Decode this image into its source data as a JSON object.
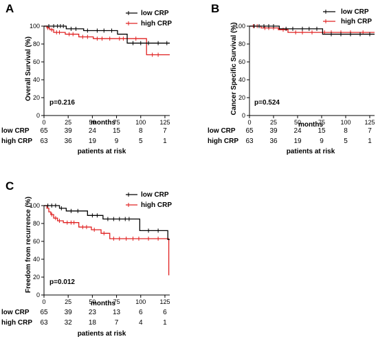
{
  "colors": {
    "low": "#000000",
    "high": "#e02020"
  },
  "chart_data": [
    {
      "panel": "A",
      "type": "line",
      "ylabel": "Overall  Survival (%)",
      "xlabel": "months",
      "xlim": [
        0,
        130
      ],
      "ylim": [
        0,
        100
      ],
      "xticks": [
        "0",
        "25",
        "50",
        "75",
        "100",
        "125"
      ],
      "yticks": [
        "0",
        "20",
        "40",
        "60",
        "80",
        "100"
      ],
      "p_value": "p=0.216",
      "series": [
        {
          "name": "low CRP",
          "color": "#000000",
          "steps": [
            [
              0,
              100
            ],
            [
              22,
              100
            ],
            [
              23,
              97
            ],
            [
              40,
              97
            ],
            [
              41,
              95
            ],
            [
              75,
              95
            ],
            [
              76,
              91
            ],
            [
              85,
              91
            ],
            [
              86,
              81
            ],
            [
              130,
              81
            ]
          ],
          "censors": [
            [
              5,
              100
            ],
            [
              10,
              100
            ],
            [
              14,
              100
            ],
            [
              17,
              100
            ],
            [
              20,
              100
            ],
            [
              28,
              97
            ],
            [
              33,
              97
            ],
            [
              45,
              95
            ],
            [
              55,
              95
            ],
            [
              62,
              95
            ],
            [
              70,
              95
            ],
            [
              92,
              81
            ],
            [
              100,
              81
            ],
            [
              108,
              81
            ],
            [
              118,
              81
            ],
            [
              127,
              81
            ]
          ]
        },
        {
          "name": "high CRP",
          "color": "#e02020",
          "steps": [
            [
              0,
              100
            ],
            [
              3,
              98
            ],
            [
              6,
              96
            ],
            [
              10,
              93
            ],
            [
              22,
              91
            ],
            [
              35,
              91
            ],
            [
              36,
              88
            ],
            [
              50,
              88
            ],
            [
              51,
              86
            ],
            [
              105,
              86
            ],
            [
              106,
              68
            ],
            [
              130,
              68
            ]
          ],
          "censors": [
            [
              4,
              98
            ],
            [
              8,
              96
            ],
            [
              13,
              93
            ],
            [
              16,
              93
            ],
            [
              26,
              91
            ],
            [
              30,
              91
            ],
            [
              40,
              88
            ],
            [
              45,
              88
            ],
            [
              55,
              86
            ],
            [
              60,
              86
            ],
            [
              68,
              86
            ],
            [
              78,
              86
            ],
            [
              82,
              86
            ],
            [
              95,
              86
            ],
            [
              112,
              68
            ],
            [
              118,
              68
            ]
          ]
        }
      ],
      "risk_table": {
        "title": "patients at risk",
        "rows": [
          {
            "label": "low CRP",
            "values": [
              "65",
              "39",
              "24",
              "15",
              "8",
              "7"
            ]
          },
          {
            "label": "high CRP",
            "values": [
              "63",
              "36",
              "19",
              "9",
              "5",
              "1"
            ]
          }
        ]
      }
    },
    {
      "panel": "B",
      "type": "line",
      "ylabel": "Cancer Specific Survival (%)",
      "xlabel": "months",
      "xlim": [
        0,
        130
      ],
      "ylim": [
        0,
        100
      ],
      "xticks": [
        "0",
        "25",
        "50",
        "75",
        "100",
        "125"
      ],
      "yticks": [
        "0",
        "20",
        "40",
        "60",
        "80",
        "100"
      ],
      "p_value": "p=0.524",
      "series": [
        {
          "name": "low CRP",
          "color": "#000000",
          "steps": [
            [
              0,
              100
            ],
            [
              30,
              100
            ],
            [
              31,
              97
            ],
            [
              75,
              97
            ],
            [
              76,
              91
            ],
            [
              130,
              91
            ]
          ],
          "censors": [
            [
              5,
              100
            ],
            [
              10,
              100
            ],
            [
              15,
              100
            ],
            [
              20,
              100
            ],
            [
              25,
              100
            ],
            [
              38,
              97
            ],
            [
              45,
              97
            ],
            [
              55,
              97
            ],
            [
              62,
              97
            ],
            [
              70,
              97
            ],
            [
              85,
              91
            ],
            [
              95,
              91
            ],
            [
              105,
              91
            ],
            [
              115,
              91
            ],
            [
              125,
              91
            ]
          ]
        },
        {
          "name": "high CRP",
          "color": "#e02020",
          "steps": [
            [
              0,
              100
            ],
            [
              12,
              98
            ],
            [
              30,
              96
            ],
            [
              40,
              93
            ],
            [
              130,
              93
            ]
          ],
          "censors": [
            [
              4,
              100
            ],
            [
              8,
              100
            ],
            [
              16,
              98
            ],
            [
              20,
              98
            ],
            [
              25,
              98
            ],
            [
              35,
              96
            ],
            [
              48,
              93
            ],
            [
              55,
              93
            ],
            [
              65,
              93
            ],
            [
              78,
              93
            ],
            [
              85,
              93
            ],
            [
              95,
              93
            ],
            [
              105,
              93
            ],
            [
              118,
              93
            ]
          ]
        }
      ],
      "risk_table": {
        "title": "patients at risk",
        "rows": [
          {
            "label": "low CRP",
            "values": [
              "65",
              "39",
              "24",
              "15",
              "8",
              "7"
            ]
          },
          {
            "label": "high CRP",
            "values": [
              "63",
              "36",
              "19",
              "9",
              "5",
              "1"
            ]
          }
        ]
      }
    },
    {
      "panel": "C",
      "type": "line",
      "ylabel": "Freedom from recurrence (%)",
      "xlabel": "months",
      "xlim": [
        0,
        130
      ],
      "ylim": [
        0,
        100
      ],
      "xticks": [
        "0",
        "25",
        "50",
        "75",
        "100",
        "125"
      ],
      "yticks": [
        "0",
        "20",
        "40",
        "60",
        "80",
        "100"
      ],
      "p_value": "p=0.012",
      "series": [
        {
          "name": "low CRP",
          "color": "#000000",
          "steps": [
            [
              0,
              100
            ],
            [
              15,
              100
            ],
            [
              16,
              97
            ],
            [
              22,
              97
            ],
            [
              23,
              94
            ],
            [
              44,
              94
            ],
            [
              45,
              89
            ],
            [
              60,
              89
            ],
            [
              61,
              85
            ],
            [
              98,
              85
            ],
            [
              99,
              72
            ],
            [
              127,
              72
            ],
            [
              128,
              62
            ],
            [
              130,
              62
            ]
          ],
          "censors": [
            [
              4,
              100
            ],
            [
              8,
              100
            ],
            [
              12,
              100
            ],
            [
              18,
              97
            ],
            [
              28,
              94
            ],
            [
              35,
              94
            ],
            [
              50,
              89
            ],
            [
              55,
              89
            ],
            [
              66,
              85
            ],
            [
              72,
              85
            ],
            [
              78,
              85
            ],
            [
              84,
              85
            ],
            [
              88,
              85
            ],
            [
              108,
              72
            ],
            [
              118,
              72
            ]
          ]
        },
        {
          "name": "high CRP",
          "color": "#e02020",
          "steps": [
            [
              0,
              100
            ],
            [
              3,
              97
            ],
            [
              5,
              93
            ],
            [
              7,
              90
            ],
            [
              10,
              86
            ],
            [
              14,
              83
            ],
            [
              20,
              81
            ],
            [
              35,
              81
            ],
            [
              36,
              76
            ],
            [
              48,
              76
            ],
            [
              49,
              73
            ],
            [
              58,
              73
            ],
            [
              59,
              69
            ],
            [
              67,
              69
            ],
            [
              68,
              63
            ],
            [
              128,
              63
            ],
            [
              129,
              22
            ]
          ],
          "censors": [
            [
              8,
              90
            ],
            [
              12,
              86
            ],
            [
              16,
              83
            ],
            [
              24,
              81
            ],
            [
              28,
              81
            ],
            [
              31,
              81
            ],
            [
              40,
              76
            ],
            [
              44,
              76
            ],
            [
              52,
              73
            ],
            [
              62,
              69
            ],
            [
              72,
              63
            ],
            [
              78,
              63
            ],
            [
              85,
              63
            ],
            [
              92,
              63
            ],
            [
              98,
              63
            ],
            [
              108,
              63
            ],
            [
              118,
              63
            ]
          ]
        }
      ],
      "risk_table": {
        "title": "patients at risk",
        "rows": [
          {
            "label": "low CRP",
            "values": [
              "65",
              "39",
              "23",
              "13",
              "6",
              "6"
            ]
          },
          {
            "label": "high CRP",
            "values": [
              "63",
              "32",
              "18",
              "7",
              "4",
              "1"
            ]
          }
        ]
      }
    }
  ]
}
